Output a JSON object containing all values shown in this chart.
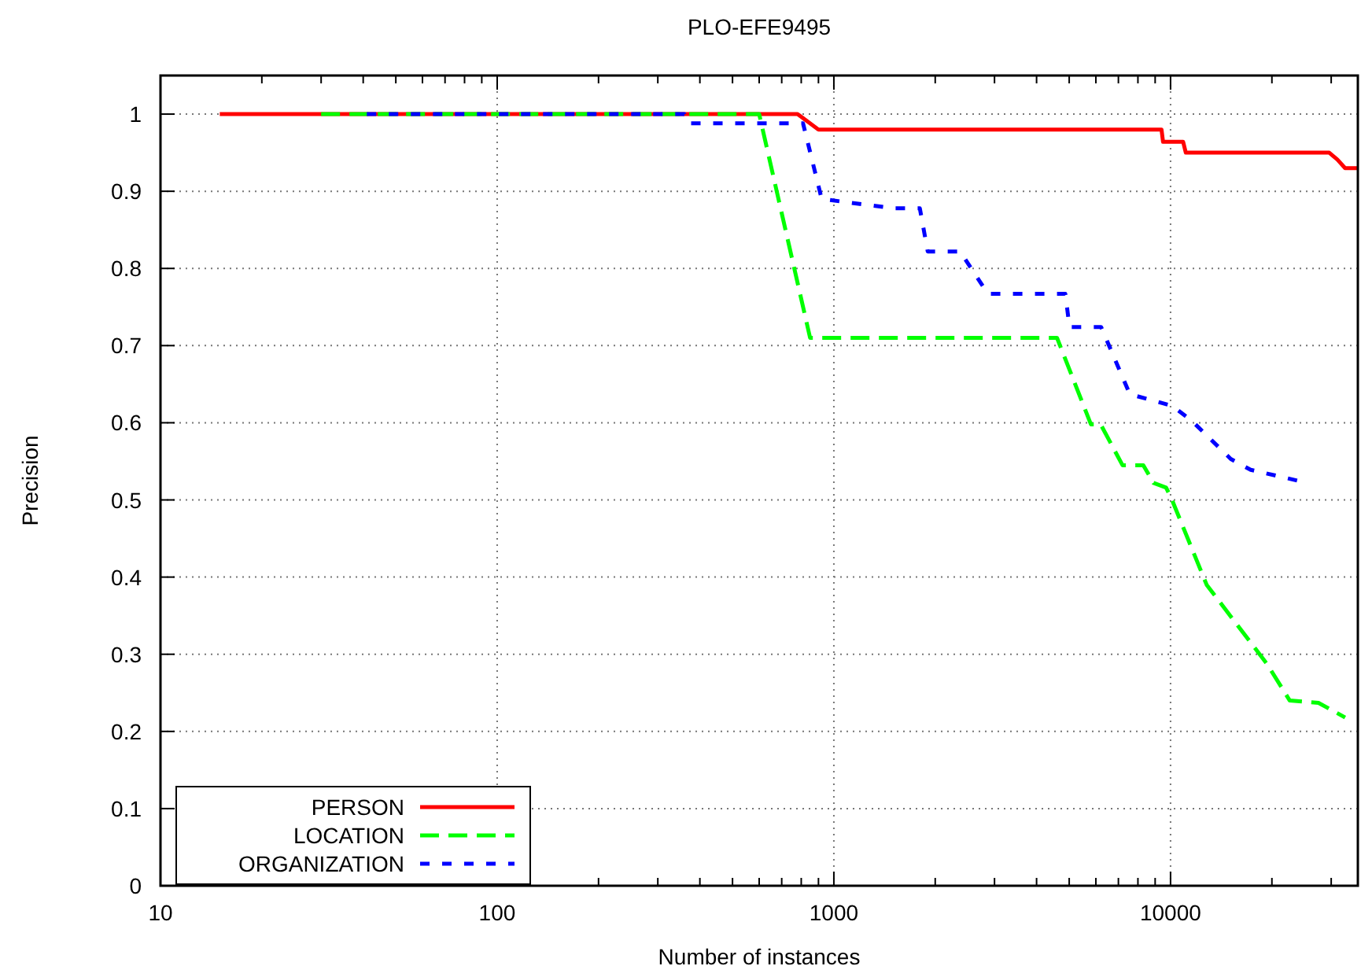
{
  "chart_data": {
    "type": "line",
    "title": "PLO-EFE9495",
    "xlabel": "Number of instances",
    "ylabel": "Precision",
    "log": "x",
    "grid": true,
    "legend": "bottom left",
    "xlim": [
      10,
      36000
    ],
    "ylim": [
      0,
      1.05
    ],
    "xticks": [
      10,
      {
        "value": 20,
        "label": null
      },
      {
        "value": 30,
        "label": null
      },
      {
        "value": 40,
        "label": null
      },
      {
        "value": 50,
        "label": null
      },
      {
        "value": 60,
        "label": null
      },
      {
        "value": 70,
        "label": null
      },
      {
        "value": 80,
        "label": null
      },
      {
        "value": 90,
        "label": null
      },
      100,
      {
        "value": 200,
        "label": null
      },
      {
        "value": 300,
        "label": null
      },
      {
        "value": 400,
        "label": null
      },
      {
        "value": 500,
        "label": null
      },
      {
        "value": 600,
        "label": null
      },
      {
        "value": 700,
        "label": null
      },
      {
        "value": 800,
        "label": null
      },
      {
        "value": 900,
        "label": null
      },
      1000,
      {
        "value": 2000,
        "label": null
      },
      {
        "value": 3000,
        "label": null
      },
      {
        "value": 4000,
        "label": null
      },
      {
        "value": 5000,
        "label": null
      },
      {
        "value": 6000,
        "label": null
      },
      {
        "value": 7000,
        "label": null
      },
      {
        "value": 8000,
        "label": null
      },
      {
        "value": 9000,
        "label": null
      },
      10000,
      {
        "value": 20000,
        "label": null
      },
      {
        "value": 30000,
        "label": null
      }
    ],
    "yticks": [
      0,
      0.1,
      0.2,
      0.3,
      0.4,
      0.5,
      0.6,
      0.7,
      0.8,
      0.9,
      1
    ],
    "series": [
      {
        "name": "PERSON",
        "color": "#ff0000",
        "line_style": "solid",
        "x": [
          15,
          780,
          900,
          9400,
          9500,
          10900,
          11100,
          29600,
          31300,
          33000,
          36000
        ],
        "values": [
          1,
          1,
          0.98,
          0.98,
          0.964,
          0.964,
          0.95,
          0.95,
          0.941,
          0.93,
          0.93
        ]
      },
      {
        "name": "LOCATION",
        "color": "#00ff00",
        "line_style": "dashed",
        "x": [
          30,
          600,
          850,
          4600,
          5800,
          6200,
          7200,
          8300,
          8900,
          9700,
          10100,
          12800,
          19300,
          22600,
          27500,
          30300,
          33000
        ],
        "values": [
          1,
          1,
          0.71,
          0.71,
          0.598,
          0.598,
          0.545,
          0.545,
          0.522,
          0.516,
          0.5,
          0.39,
          0.288,
          0.24,
          0.237,
          0.227,
          0.218
        ]
      },
      {
        "name": "ORGANIZATION",
        "color": "#0000ff",
        "line_style": "dotted",
        "x": [
          41,
          360,
          370,
          810,
          920,
          1500,
          1800,
          1900,
          2370,
          2870,
          4870,
          5010,
          6220,
          7570,
          10100,
          11600,
          15100,
          17300,
          24400
        ],
        "values": [
          1,
          1,
          0.988,
          0.988,
          0.89,
          0.878,
          0.878,
          0.822,
          0.822,
          0.767,
          0.767,
          0.724,
          0.724,
          0.637,
          0.622,
          0.602,
          0.553,
          0.539,
          0.524
        ]
      }
    ]
  }
}
